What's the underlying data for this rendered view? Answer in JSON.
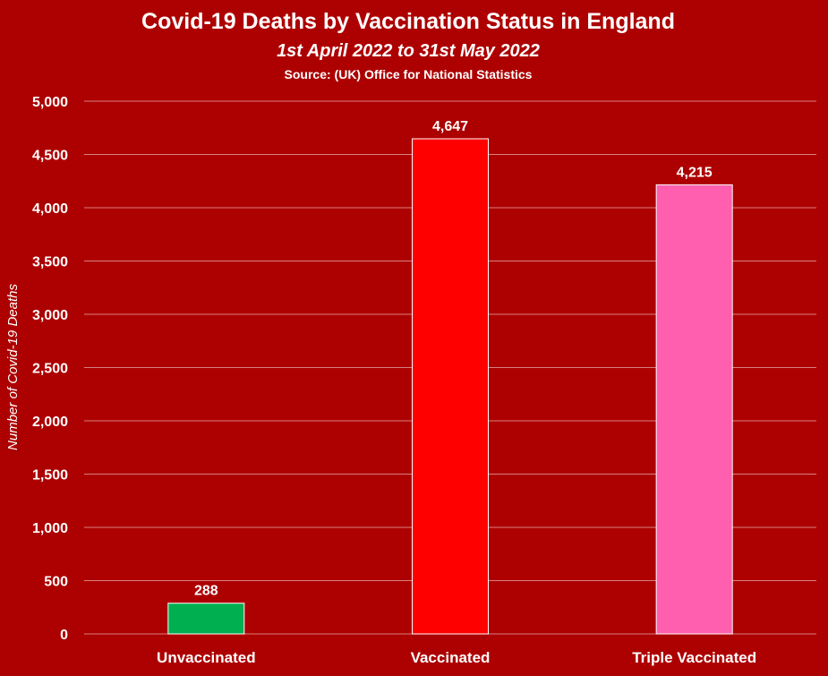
{
  "chart_data": {
    "type": "bar",
    "title": "Covid-19 Deaths by Vaccination Status in England",
    "subtitle": "1st April 2022 to 31st May 2022",
    "source": "Source: (UK) Office for National Statistics",
    "xlabel": "",
    "ylabel": "Number of Covid-19 Deaths",
    "categories": [
      "Unvaccinated",
      "Vaccinated",
      "Triple Vaccinated"
    ],
    "values": [
      288,
      4647,
      4215
    ],
    "data_labels": [
      "288",
      "4,647",
      "4,215"
    ],
    "ylim": [
      0,
      5000
    ],
    "yticks": [
      0,
      500,
      1000,
      1500,
      2000,
      2500,
      3000,
      3500,
      4000,
      4500,
      5000
    ],
    "ytick_labels": [
      "0",
      "500",
      "1,000",
      "1,500",
      "2,000",
      "2,500",
      "3,000",
      "3,500",
      "4,000",
      "4,500",
      "5,000"
    ],
    "grid": true,
    "legend": "none",
    "colors": {
      "background": "#ad0000",
      "gridline": "#d98080",
      "text": "#ffffff",
      "bars": [
        "#00b050",
        "#ff0000",
        "#ff5fae"
      ],
      "bar_outline": "#ffffff"
    }
  }
}
